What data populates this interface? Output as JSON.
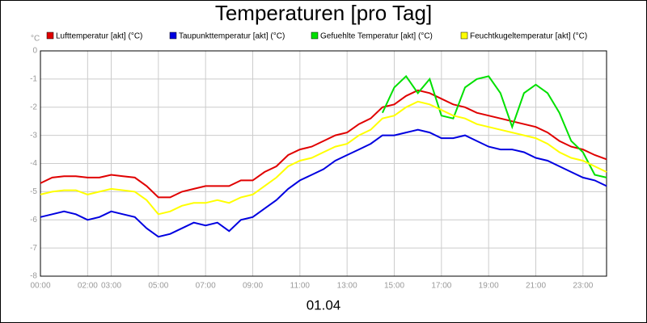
{
  "chart_data": {
    "type": "line",
    "title": "Temperaturen [pro Tag]",
    "xlabel": "01.04",
    "ylabel": "°C",
    "x": [
      0,
      0.5,
      1,
      1.5,
      2,
      2.5,
      3,
      3.5,
      4,
      4.5,
      5,
      5.5,
      6,
      6.5,
      7,
      7.5,
      8,
      8.5,
      9,
      9.5,
      10,
      10.5,
      11,
      11.5,
      12,
      12.5,
      13,
      13.5,
      14,
      14.5,
      15,
      15.5,
      16,
      16.5,
      17,
      17.5,
      18,
      18.5,
      19,
      19.5,
      20,
      20.5,
      21,
      21.5,
      22,
      22.5,
      23,
      23.5,
      24
    ],
    "series": [
      {
        "name": "Lufttemperatur [akt] (°C)",
        "color": "#e00000",
        "values": [
          -4.7,
          -4.5,
          -4.45,
          -4.45,
          -4.5,
          -4.5,
          -4.4,
          -4.45,
          -4.5,
          -4.8,
          -5.2,
          -5.2,
          -5.0,
          -4.9,
          -4.8,
          -4.8,
          -4.8,
          -4.6,
          -4.6,
          -4.3,
          -4.1,
          -3.7,
          -3.5,
          -3.4,
          -3.2,
          -3.0,
          -2.9,
          -2.6,
          -2.4,
          -2.0,
          -1.9,
          -1.6,
          -1.4,
          -1.5,
          -1.7,
          -1.9,
          -2.0,
          -2.2,
          -2.3,
          -2.4,
          -2.5,
          -2.6,
          -2.7,
          -2.9,
          -3.2,
          -3.4,
          -3.5,
          -3.7,
          -3.85
        ]
      },
      {
        "name": "Taupunkttemperatur [akt] (°C)",
        "color": "#0000e0",
        "values": [
          -5.9,
          -5.8,
          -5.7,
          -5.8,
          -6.0,
          -5.9,
          -5.7,
          -5.8,
          -5.9,
          -6.3,
          -6.6,
          -6.5,
          -6.3,
          -6.1,
          -6.2,
          -6.1,
          -6.4,
          -6.0,
          -5.9,
          -5.6,
          -5.3,
          -4.9,
          -4.6,
          -4.4,
          -4.2,
          -3.9,
          -3.7,
          -3.5,
          -3.3,
          -3.0,
          -3.0,
          -2.9,
          -2.8,
          -2.9,
          -3.1,
          -3.1,
          -3.0,
          -3.2,
          -3.4,
          -3.5,
          -3.5,
          -3.6,
          -3.8,
          -3.9,
          -4.1,
          -4.3,
          -4.5,
          -4.6,
          -4.8
        ]
      },
      {
        "name": "Gefuehlte Temperatur [akt] (°C)",
        "color": "#00e000",
        "values": [
          null,
          null,
          null,
          null,
          null,
          null,
          null,
          null,
          null,
          null,
          null,
          null,
          null,
          null,
          null,
          null,
          null,
          null,
          null,
          null,
          null,
          null,
          null,
          null,
          null,
          null,
          null,
          null,
          null,
          -2.2,
          -1.3,
          -0.9,
          -1.5,
          -1.0,
          -2.3,
          -2.4,
          -1.3,
          -1.0,
          -0.9,
          -1.5,
          -2.7,
          -1.5,
          -1.2,
          -1.5,
          -2.2,
          -3.2,
          -3.6,
          -4.4,
          -4.5
        ]
      },
      {
        "name": "Feuchtkugeltemperatur [akt] (°C)",
        "color": "#ffff00",
        "values": [
          -5.1,
          -5.0,
          -4.95,
          -4.95,
          -5.1,
          -5.0,
          -4.9,
          -4.95,
          -5.0,
          -5.3,
          -5.8,
          -5.7,
          -5.5,
          -5.4,
          -5.4,
          -5.3,
          -5.4,
          -5.2,
          -5.1,
          -4.8,
          -4.5,
          -4.1,
          -3.9,
          -3.8,
          -3.6,
          -3.4,
          -3.3,
          -3.0,
          -2.8,
          -2.4,
          -2.3,
          -2.0,
          -1.8,
          -1.9,
          -2.1,
          -2.3,
          -2.4,
          -2.6,
          -2.7,
          -2.8,
          -2.9,
          -3.0,
          -3.1,
          -3.3,
          -3.6,
          -3.8,
          -3.9,
          -4.1,
          -4.3
        ]
      }
    ],
    "xlim": [
      0,
      24
    ],
    "xticks": [
      {
        "value": 0,
        "label": "00:00"
      },
      {
        "value": 2,
        "label": "02:00"
      },
      {
        "value": 3,
        "label": "03:00"
      },
      {
        "value": 5,
        "label": "05:00"
      },
      {
        "value": 7,
        "label": "07:00"
      },
      {
        "value": 9,
        "label": "09:00"
      },
      {
        "value": 11,
        "label": "11:00"
      },
      {
        "value": 13,
        "label": "13:00"
      },
      {
        "value": 15,
        "label": "15:00"
      },
      {
        "value": 17,
        "label": "17:00"
      },
      {
        "value": 19,
        "label": "19:00"
      },
      {
        "value": 21,
        "label": "21:00"
      },
      {
        "value": 23,
        "label": "23:00"
      }
    ],
    "ylim": [
      -8,
      0
    ],
    "yticks": [
      -8,
      -7,
      -6,
      -5,
      -4,
      -3,
      -2,
      -1,
      0
    ],
    "grid": true
  }
}
